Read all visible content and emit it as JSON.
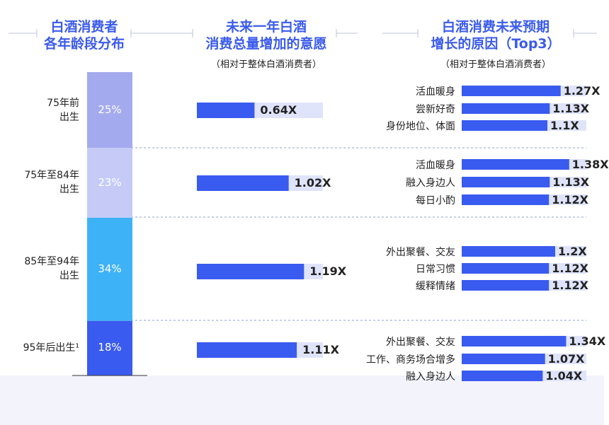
{
  "headers": {
    "col1_line1": "白酒消费者",
    "col1_line2": "各年龄段分布",
    "col2_line1": "未来一年白酒",
    "col2_line2": "消费总量增加的意愿",
    "col2_sub": "（相对于整体白酒消费者）",
    "col3_line1": "白酒消费未来预期",
    "col3_line2": "增长的原因（Top3）",
    "col3_sub": "（相对于整体白酒消费者）"
  },
  "colors": {
    "title": "#3b5bea",
    "bar": "#3a5bef",
    "track": "#dfe4fb",
    "seg1": "#a4aaee",
    "seg2": "#c5cbf6",
    "seg3": "#3eb2f7",
    "seg4": "#3a5bef",
    "bottom_band": "#f2f3fb",
    "divider": "#8ea0d2"
  },
  "chart_data": [
    {
      "type": "bar",
      "categories": [
        "75年前出生",
        "75年至84年出生",
        "85年至94年出生",
        "95年后出生¹"
      ],
      "series": [
        {
          "values": [
            25,
            23,
            34,
            18
          ],
          "labels": [
            "25%",
            "23%",
            "34%",
            "18%"
          ]
        }
      ]
    },
    {
      "type": "bar",
      "categories": [
        "75年前出生",
        "75年至84年出生",
        "85年至94年出生",
        "95年后出生¹"
      ],
      "series": [
        {
          "values": [
            0.64,
            1.02,
            1.19,
            1.11
          ],
          "labels": [
            "0.64X",
            "1.02X",
            "1.19X",
            "1.11X"
          ]
        }
      ]
    },
    {
      "type": "bar",
      "groups": [
        {
          "category": "75年前出生",
          "reasons": [
            "活血暖身",
            "尝新好奇",
            "身份地位、体面"
          ],
          "values": [
            1.27,
            1.13,
            1.1
          ],
          "labels": [
            "1.27X",
            "1.13X",
            "1.1X"
          ]
        },
        {
          "category": "75年至84年出生",
          "reasons": [
            "活血暖身",
            "融入身边人",
            "每日小酌"
          ],
          "values": [
            1.38,
            1.13,
            1.12
          ],
          "labels": [
            "1.38X",
            "1.13X",
            "1.12X"
          ]
        },
        {
          "category": "85年至94年出生",
          "reasons": [
            "外出聚餐、交友",
            "日常习惯",
            "缓释情绪"
          ],
          "values": [
            1.2,
            1.12,
            1.12
          ],
          "labels": [
            "1.2X",
            "1.12X",
            "1.12X"
          ]
        },
        {
          "category": "95年后出生¹",
          "reasons": [
            "外出聚餐、交友",
            "工作、商务场合增多",
            "融入身边人"
          ],
          "values": [
            1.34,
            1.07,
            1.04
          ],
          "labels": [
            "1.34X",
            "1.07X",
            "1.04X"
          ]
        }
      ]
    }
  ]
}
